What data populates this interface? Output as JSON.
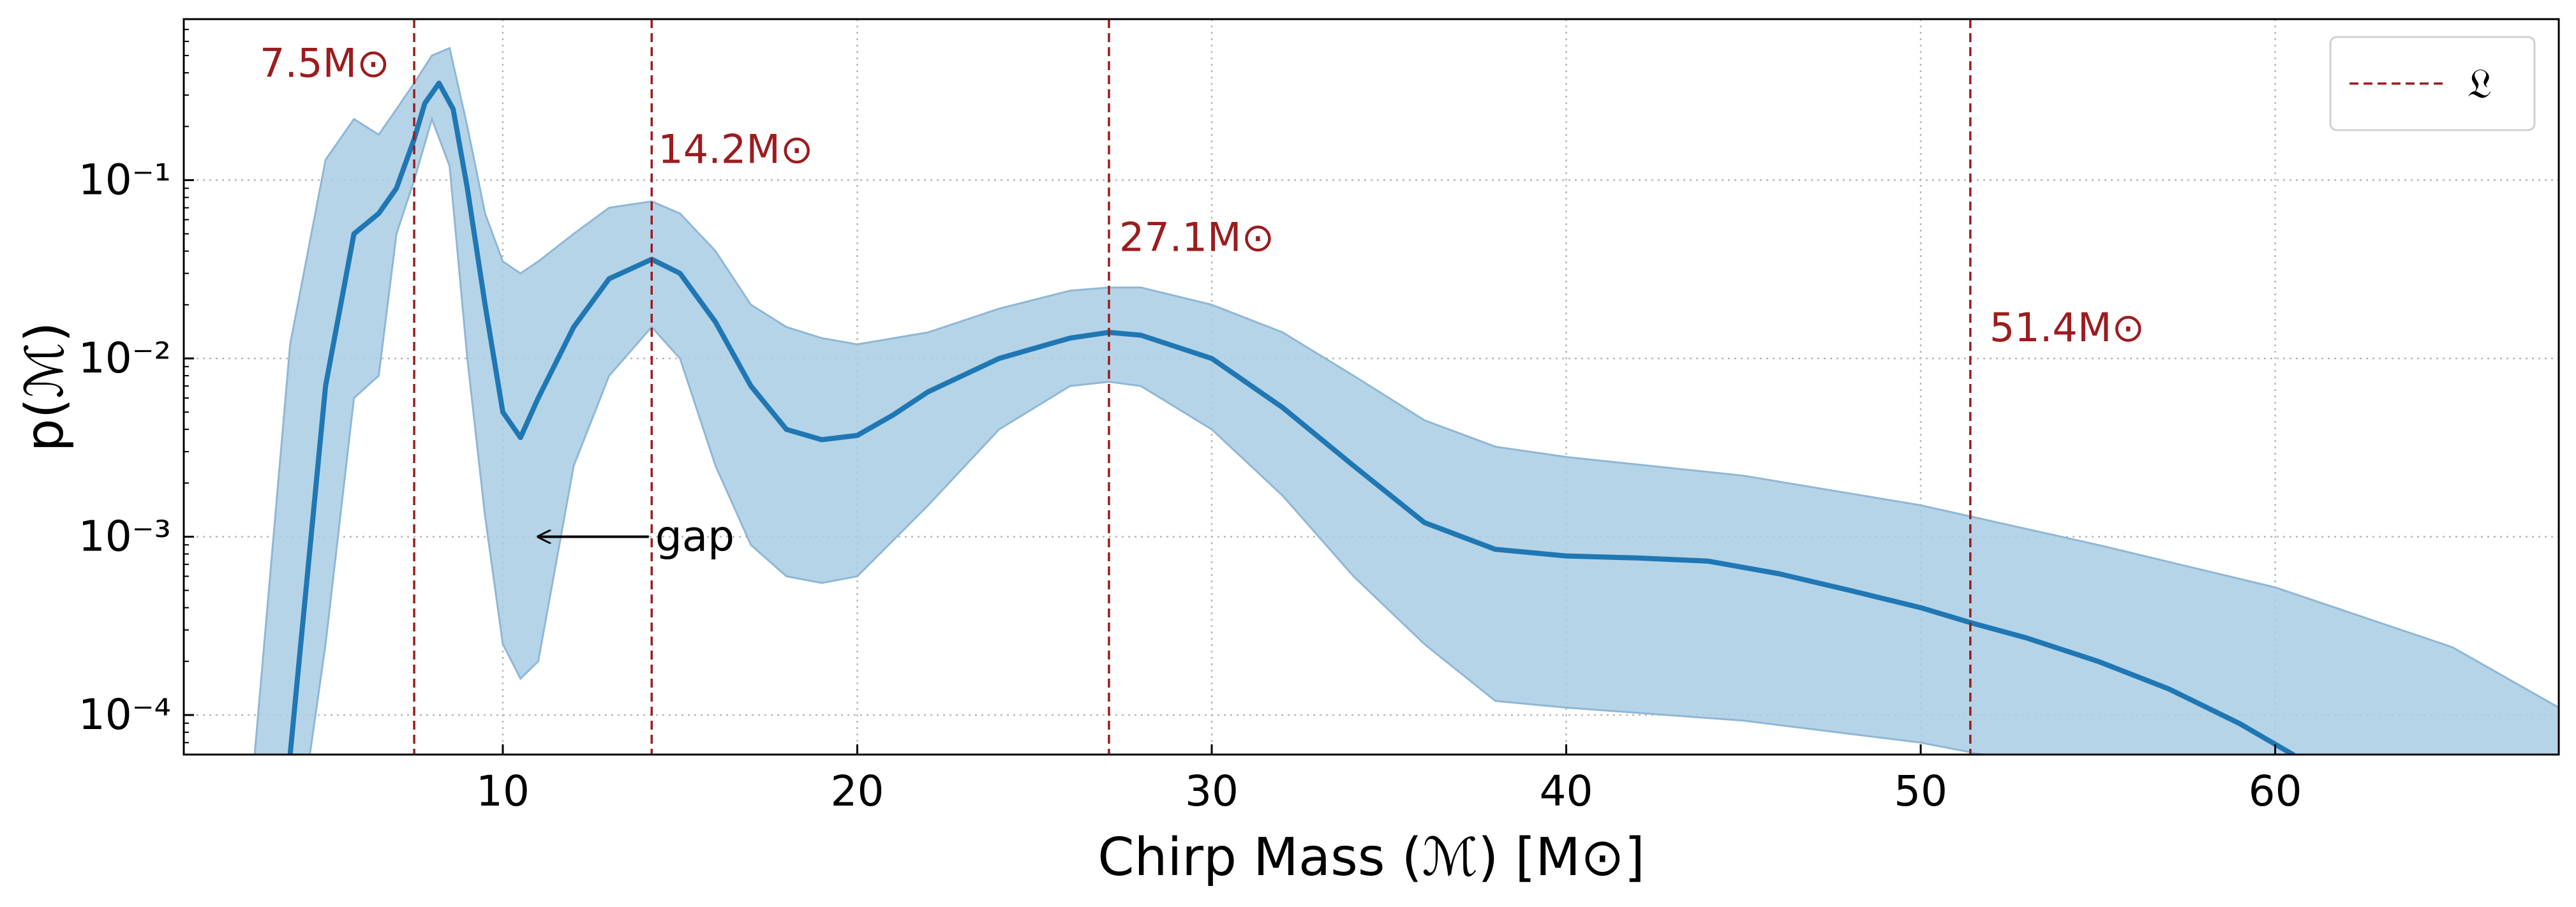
{
  "chart_data": {
    "type": "line",
    "xlabel": "Chirp Mass (ℳ) [M⊙]",
    "ylabel": "p(ℳ)",
    "xlim": [
      1,
      68
    ],
    "ylim": [
      6e-05,
      0.8
    ],
    "yscale": "log",
    "grid": true,
    "legend_position": "top-right",
    "x_ticks": [
      10,
      20,
      30,
      40,
      50,
      60
    ],
    "x_tick_labels": [
      "10",
      "20",
      "30",
      "40",
      "50",
      "60"
    ],
    "y_ticks": [
      0.0001,
      0.001,
      0.01,
      0.1
    ],
    "y_tick_labels": [
      "10⁻⁴",
      "10⁻³",
      "10⁻²",
      "10⁻¹"
    ],
    "colors": {
      "line": "#1f77b4",
      "band": "#a9cce3",
      "band_edge": "#8fb7d6",
      "vline": "#9b1c1f"
    },
    "series": [
      {
        "x": [
          4,
          5,
          5.8,
          6.5,
          7.0,
          7.5,
          7.8,
          8.2,
          8.6,
          9.0,
          9.5,
          10.0,
          10.5,
          11.0,
          12.0,
          13.0,
          14.2,
          15.0,
          16.0,
          17.0,
          18.0,
          19.0,
          20.0,
          21.0,
          22.0,
          24.0,
          26.0,
          27.1,
          28.0,
          30.0,
          32.0,
          34.0,
          36.0,
          38.0,
          40.0,
          42.0,
          44.0,
          46.0,
          48.0,
          50.0,
          51.4,
          53.0,
          55.0,
          57.0,
          59.0,
          60.5
        ],
        "y": [
          6e-05,
          0.007,
          0.05,
          0.065,
          0.09,
          0.17,
          0.27,
          0.35,
          0.25,
          0.09,
          0.02,
          0.005,
          0.0036,
          0.006,
          0.015,
          0.028,
          0.036,
          0.03,
          0.016,
          0.007,
          0.004,
          0.0035,
          0.0037,
          0.0048,
          0.0065,
          0.01,
          0.013,
          0.014,
          0.0135,
          0.01,
          0.0053,
          0.0025,
          0.0012,
          0.00085,
          0.00078,
          0.00076,
          0.00073,
          0.00062,
          0.0005,
          0.0004,
          0.00033,
          0.00027,
          0.0002,
          0.00014,
          8.95e-05,
          6e-05
        ]
      }
    ],
    "band": {
      "x": [
        3,
        4,
        5,
        5.8,
        6.5,
        7.0,
        7.5,
        8.0,
        8.5,
        9.0,
        9.5,
        10.0,
        10.5,
        11.0,
        12.0,
        13.0,
        14.2,
        15.0,
        16.0,
        17.0,
        18.0,
        19.0,
        20.0,
        22.0,
        24.0,
        26.0,
        27.1,
        28.0,
        30.0,
        32.0,
        34.0,
        36.0,
        38.0,
        40.0,
        45.0,
        50.0,
        55.0,
        60.0,
        65.0,
        68.0
      ],
      "upper": [
        6e-05,
        0.012,
        0.13,
        0.22,
        0.18,
        0.25,
        0.35,
        0.5,
        0.55,
        0.2,
        0.065,
        0.035,
        0.03,
        0.035,
        0.05,
        0.07,
        0.076,
        0.065,
        0.04,
        0.02,
        0.015,
        0.013,
        0.012,
        0.014,
        0.019,
        0.024,
        0.025,
        0.025,
        0.02,
        0.014,
        0.008,
        0.0045,
        0.0032,
        0.0028,
        0.0022,
        0.0015,
        0.0009,
        0.00052,
        0.00024,
        0.00011
      ],
      "lower": [
        1e-05,
        1e-05,
        0.00025,
        0.006,
        0.008,
        0.05,
        0.1,
        0.22,
        0.12,
        0.01,
        0.0013,
        0.00025,
        0.00016,
        0.0002,
        0.0025,
        0.008,
        0.015,
        0.01,
        0.0025,
        0.0009,
        0.0006,
        0.00055,
        0.0006,
        0.0015,
        0.004,
        0.007,
        0.0074,
        0.007,
        0.004,
        0.0017,
        0.0006,
        0.00025,
        0.00012,
        0.00011,
        9.3e-05,
        7e-05,
        4.5e-05,
        2e-05,
        1e-05,
        1e-05
      ]
    },
    "vlines": [
      {
        "x": 7.5,
        "label": "7.5M⊙"
      },
      {
        "x": 14.2,
        "label": "14.2M⊙"
      },
      {
        "x": 27.1,
        "label": "27.1M⊙"
      },
      {
        "x": 51.4,
        "label": "51.4M⊙"
      }
    ],
    "annotation": {
      "text": "gap",
      "arrow_to": {
        "x": 11,
        "y": 0.001
      }
    },
    "legend": [
      {
        "label": "𝔏",
        "style": "dashed",
        "color": "#9b1c1f"
      }
    ]
  }
}
